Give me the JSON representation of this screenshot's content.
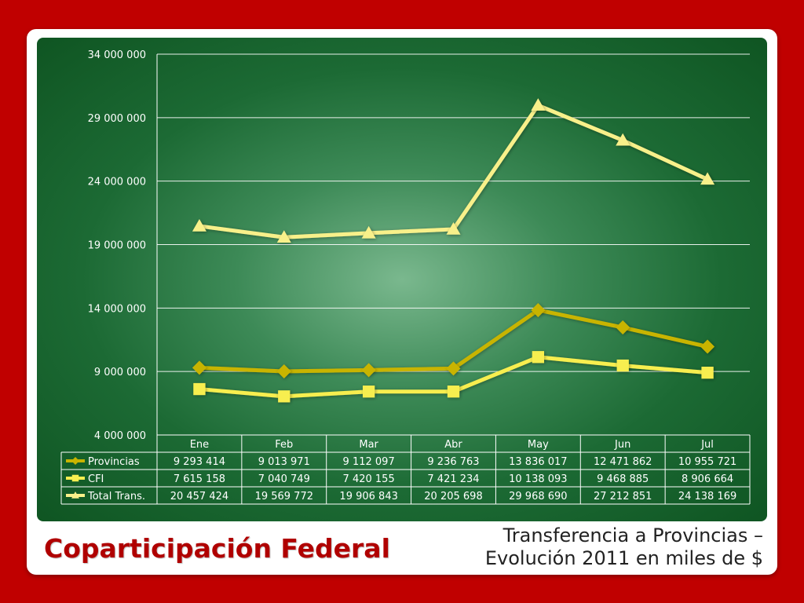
{
  "slide": {
    "title": "Coparticipación Federal",
    "subtitle_line1": "Transferencia a Provincias –",
    "subtitle_line2": "Evolución 2011 en miles de $"
  },
  "colors": {
    "background": "#c00000",
    "title": "#b00000",
    "provincias": "#c8b400",
    "cfi": "#f7ee50",
    "total": "#f8f08a"
  },
  "chart_data": {
    "type": "line",
    "title": "",
    "xlabel": "",
    "ylabel": "",
    "categories": [
      "Ene",
      "Feb",
      "Mar",
      "Abr",
      "May",
      "Jun",
      "Jul"
    ],
    "ylim": [
      4000000,
      34000000
    ],
    "yticks": [
      4000000,
      9000000,
      14000000,
      19000000,
      24000000,
      29000000,
      34000000
    ],
    "ytick_labels": [
      "4 000 000",
      "9 000 000",
      "14 000 000",
      "19 000 000",
      "24 000 000",
      "29 000 000",
      "34 000 000"
    ],
    "grid": true,
    "legend": "data-table",
    "series": [
      {
        "name": "Provincias",
        "marker": "diamond",
        "values": [
          9293414,
          9013971,
          9112097,
          9236763,
          13836017,
          12471862,
          10955721
        ],
        "labels": [
          "9 293 414",
          "9 013 971",
          "9 112 097",
          "9 236 763",
          "13 836 017",
          "12 471 862",
          "10 955 721"
        ]
      },
      {
        "name": "CFI",
        "marker": "square",
        "values": [
          7615158,
          7040749,
          7420155,
          7421234,
          10138093,
          9468885,
          8906664
        ],
        "labels": [
          "7 615 158",
          "7 040 749",
          "7 420 155",
          "7 421 234",
          "10 138 093",
          "9 468 885",
          "8 906 664"
        ]
      },
      {
        "name": "Total Trans.",
        "marker": "triangle",
        "values": [
          20457424,
          19569772,
          19906843,
          20205698,
          29968690,
          27212851,
          24138169
        ],
        "labels": [
          "20 457 424",
          "19 569 772",
          "19 906 843",
          "20 205 698",
          "29 968 690",
          "27 212 851",
          "24 138 169"
        ]
      }
    ]
  }
}
